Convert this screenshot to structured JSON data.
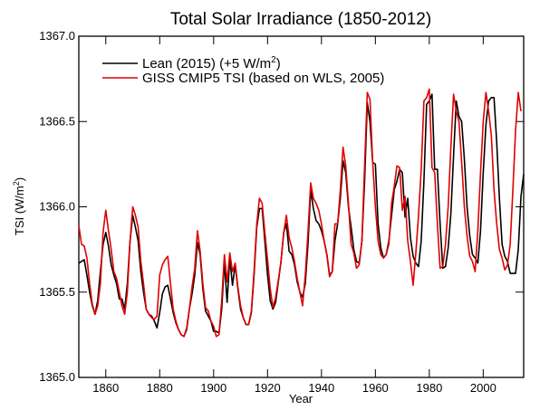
{
  "chart_data": {
    "type": "line",
    "title": "Total Solar Irradiance (1850-2012)",
    "xlabel": "Year",
    "ylabel": "TSI (W/m2)",
    "ylabel_main": "TSI (W/m",
    "ylabel_sup": "2",
    "ylabel_close": ")",
    "xlim": [
      1850,
      2015
    ],
    "ylim": [
      1365.0,
      1367.0
    ],
    "xticks": [
      1860,
      1880,
      1900,
      1920,
      1940,
      1960,
      1980,
      2000
    ],
    "xtick_labels": [
      "1860",
      "1880",
      "1900",
      "1920",
      "1940",
      "1960",
      "1980",
      "2000"
    ],
    "yticks": [
      1365.0,
      1365.5,
      1366.0,
      1366.5,
      1367.0
    ],
    "ytick_labels": [
      "1365.0",
      "1365.5",
      "1366.0",
      "1366.5",
      "1367.0"
    ],
    "grid": false,
    "legend_position": "top-left",
    "series": [
      {
        "name": "Lean (2015) (+5 W/m2)",
        "legend_main": "Lean (2015) (+5 W/m",
        "legend_sup": "2",
        "legend_close": ")",
        "color": "#000000",
        "x_start": 1850,
        "values": [
          1365.67,
          1365.68,
          1365.69,
          1365.6,
          1365.5,
          1365.42,
          1365.37,
          1365.45,
          1365.62,
          1365.78,
          1365.85,
          1365.77,
          1365.66,
          1365.6,
          1365.55,
          1365.46,
          1365.46,
          1365.4,
          1365.55,
          1365.8,
          1365.95,
          1365.88,
          1365.8,
          1365.62,
          1365.5,
          1365.4,
          1365.37,
          1365.36,
          1365.33,
          1365.29,
          1365.38,
          1365.49,
          1365.53,
          1365.54,
          1365.46,
          1365.38,
          1365.32,
          1365.28,
          1365.25,
          1365.24,
          1365.28,
          1365.4,
          1365.49,
          1365.6,
          1365.79,
          1365.72,
          1365.52,
          1365.39,
          1365.36,
          1365.33,
          1365.27,
          1365.27,
          1365.26,
          1365.4,
          1365.68,
          1365.44,
          1365.7,
          1365.54,
          1365.66,
          1365.52,
          1365.4,
          1365.35,
          1365.31,
          1365.31,
          1365.38,
          1365.6,
          1365.88,
          1365.99,
          1365.99,
          1365.8,
          1365.6,
          1365.45,
          1365.4,
          1365.44,
          1365.56,
          1365.68,
          1365.85,
          1365.9,
          1365.74,
          1365.72,
          1365.66,
          1365.56,
          1365.5,
          1365.47,
          1365.55,
          1365.78,
          1366.1,
          1365.99,
          1365.92,
          1365.9,
          1365.86,
          1365.8,
          1365.72,
          1365.6,
          1365.62,
          1365.8,
          1365.9,
          1366.05,
          1366.27,
          1366.2,
          1366.0,
          1365.88,
          1365.75,
          1365.68,
          1365.67,
          1365.8,
          1366.15,
          1366.61,
          1366.5,
          1366.26,
          1366.25,
          1365.9,
          1365.76,
          1365.7,
          1365.72,
          1365.8,
          1365.95,
          1366.1,
          1366.15,
          1366.22,
          1366.2,
          1365.94,
          1366.05,
          1365.82,
          1365.71,
          1365.67,
          1365.65,
          1365.8,
          1366.15,
          1366.6,
          1366.62,
          1366.66,
          1366.22,
          1366.22,
          1365.9,
          1365.64,
          1365.65,
          1365.76,
          1365.96,
          1366.3,
          1366.62,
          1366.53,
          1366.5,
          1366.28,
          1366.0,
          1365.83,
          1365.72,
          1365.7,
          1365.67,
          1365.86,
          1366.2,
          1366.48,
          1366.62,
          1366.64,
          1366.64,
          1366.38,
          1366.05,
          1365.78,
          1365.71,
          1365.68,
          1365.61,
          1365.61,
          1365.61,
          1365.75,
          1366.06,
          1366.19
        ]
      },
      {
        "name": "GISS CMIP5 TSI (based on WLS, 2005)",
        "legend_main": "GISS CMIP5 TSI (based on WLS, 2005)",
        "color": "#e00000",
        "x_start": 1850,
        "values": [
          1365.89,
          1365.78,
          1365.77,
          1365.7,
          1365.55,
          1365.43,
          1365.37,
          1365.42,
          1365.55,
          1365.85,
          1365.98,
          1365.86,
          1365.75,
          1365.62,
          1365.58,
          1365.5,
          1365.42,
          1365.37,
          1365.5,
          1365.8,
          1366.0,
          1365.95,
          1365.88,
          1365.68,
          1365.55,
          1365.4,
          1365.37,
          1365.35,
          1365.34,
          1365.36,
          1365.6,
          1365.66,
          1365.69,
          1365.71,
          1365.55,
          1365.4,
          1365.33,
          1365.28,
          1365.25,
          1365.24,
          1365.29,
          1365.4,
          1365.53,
          1365.64,
          1365.86,
          1365.74,
          1365.55,
          1365.41,
          1365.39,
          1365.33,
          1365.3,
          1365.24,
          1365.25,
          1365.45,
          1365.72,
          1365.56,
          1365.73,
          1365.62,
          1365.67,
          1365.53,
          1365.42,
          1365.35,
          1365.31,
          1365.31,
          1365.39,
          1365.62,
          1365.9,
          1366.05,
          1366.02,
          1365.85,
          1365.69,
          1365.52,
          1365.41,
          1365.47,
          1365.57,
          1365.68,
          1365.85,
          1365.95,
          1365.82,
          1365.76,
          1365.68,
          1365.58,
          1365.5,
          1365.42,
          1365.6,
          1365.85,
          1366.14,
          1366.05,
          1366.02,
          1365.98,
          1365.9,
          1365.8,
          1365.72,
          1365.59,
          1365.62,
          1365.9,
          1365.9,
          1366.1,
          1366.35,
          1366.24,
          1366.02,
          1365.78,
          1365.73,
          1365.64,
          1365.66,
          1365.8,
          1366.24,
          1366.67,
          1366.63,
          1366.26,
          1366.0,
          1365.8,
          1365.72,
          1365.7,
          1365.72,
          1365.78,
          1366.02,
          1366.12,
          1366.24,
          1366.23,
          1365.98,
          1366.06,
          1365.8,
          1365.68,
          1365.54,
          1365.73,
          1365.95,
          1366.22,
          1366.62,
          1366.64,
          1366.69,
          1366.23,
          1366.2,
          1365.9,
          1365.64,
          1365.65,
          1365.78,
          1366.0,
          1366.35,
          1366.66,
          1366.56,
          1366.5,
          1366.26,
          1366.0,
          1365.83,
          1365.71,
          1365.68,
          1365.62,
          1365.86,
          1366.2,
          1366.5,
          1366.67,
          1366.56,
          1366.42,
          1366.1,
          1365.9,
          1365.75,
          1365.7,
          1365.63,
          1365.66,
          1365.78,
          1366.1,
          1366.45,
          1366.67,
          1366.56
        ]
      }
    ]
  }
}
